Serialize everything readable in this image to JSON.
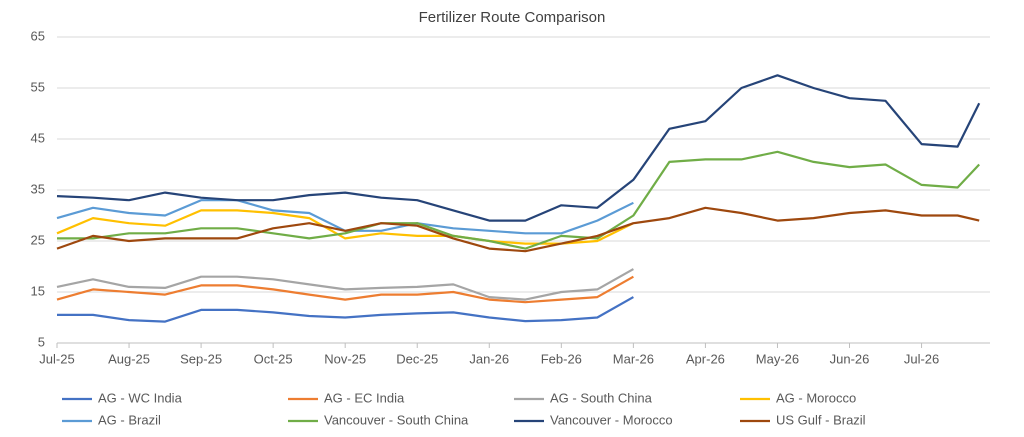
{
  "chart_data": {
    "type": "line",
    "title": "Fertilizer Route Comparison",
    "x": [
      0,
      0.5,
      1,
      1.5,
      2,
      2.5,
      3,
      3.5,
      4,
      4.5,
      5,
      5.5,
      6,
      6.5,
      7,
      7.5,
      8,
      8.5,
      9,
      9.5,
      10,
      10.5,
      11,
      11.5,
      12,
      12.5,
      12.8
    ],
    "xlim": [
      0,
      12.95
    ],
    "xticks": [
      {
        "value": 0,
        "label": "Jul-25"
      },
      {
        "value": 1,
        "label": "Aug-25"
      },
      {
        "value": 2,
        "label": "Sep-25"
      },
      {
        "value": 3,
        "label": "Oct-25"
      },
      {
        "value": 4,
        "label": "Nov-25"
      },
      {
        "value": 5,
        "label": "Dec-25"
      },
      {
        "value": 6,
        "label": "Jan-26"
      },
      {
        "value": 7,
        "label": "Feb-26"
      },
      {
        "value": 8,
        "label": "Mar-26"
      },
      {
        "value": 9,
        "label": "Apr-26"
      },
      {
        "value": 10,
        "label": "May-26"
      },
      {
        "value": 11,
        "label": "Jun-26"
      },
      {
        "value": 12,
        "label": "Jul-26"
      }
    ],
    "ylim": [
      5,
      65
    ],
    "yticks": [
      5,
      15,
      25,
      35,
      45,
      55,
      65
    ],
    "grid": true,
    "series": [
      {
        "name": "AG - WC India",
        "color": "#4472c4",
        "values": [
          10.5,
          10.5,
          9.5,
          9.2,
          11.5,
          11.5,
          11,
          10.3,
          10,
          10.5,
          10.8,
          11,
          10,
          9.3,
          9.5,
          10,
          14,
          null,
          null,
          null,
          null,
          null,
          null,
          null,
          null,
          null,
          null
        ]
      },
      {
        "name": "AG - EC India",
        "color": "#ed7d31",
        "values": [
          13.5,
          15.5,
          15,
          14.5,
          16.3,
          16.3,
          15.5,
          14.5,
          13.5,
          14.5,
          14.5,
          15,
          13.5,
          13,
          13.5,
          14,
          18,
          null,
          null,
          null,
          null,
          null,
          null,
          null,
          null,
          null,
          null
        ]
      },
      {
        "name": "AG - South China",
        "color": "#a5a5a5",
        "values": [
          16,
          17.5,
          16,
          15.8,
          18,
          18,
          17.5,
          16.5,
          15.5,
          15.8,
          16,
          16.5,
          14,
          13.5,
          15,
          15.5,
          19.5,
          null,
          null,
          null,
          null,
          null,
          null,
          null,
          null,
          null,
          null
        ]
      },
      {
        "name": "AG - Morocco",
        "color": "#ffc000",
        "values": [
          26.5,
          29.5,
          28.5,
          28,
          31,
          31,
          30.5,
          29.5,
          25.5,
          26.5,
          26,
          26,
          25,
          24.5,
          24.5,
          25,
          28.5,
          null,
          null,
          null,
          null,
          null,
          null,
          null,
          null,
          null,
          null
        ]
      },
      {
        "name": "AG - Brazil",
        "color": "#5b9bd5",
        "values": [
          29.5,
          31.5,
          30.5,
          30,
          33,
          33,
          31,
          30.5,
          27,
          27,
          28.5,
          27.5,
          27,
          26.5,
          26.5,
          29,
          32.5,
          null,
          null,
          null,
          null,
          null,
          null,
          null,
          null,
          null,
          null
        ]
      },
      {
        "name": "Vancouver - South China",
        "color": "#70ad47",
        "values": [
          25.5,
          25.5,
          26.5,
          26.5,
          27.5,
          27.5,
          26.5,
          25.5,
          26.5,
          28.5,
          28.5,
          26,
          25,
          23.5,
          26,
          25.5,
          30,
          40.5,
          41,
          41,
          42.5,
          40.5,
          39.5,
          40,
          36,
          35.5,
          40
        ]
      },
      {
        "name": "Vancouver - Morocco",
        "color": "#264478",
        "values": [
          33.8,
          33.5,
          33,
          34.5,
          33.5,
          33,
          33,
          34,
          34.5,
          33.5,
          33,
          31,
          29,
          29,
          32,
          31.5,
          37,
          47,
          48.5,
          55,
          57.5,
          55,
          53,
          52.5,
          44,
          43.5,
          52
        ]
      },
      {
        "name": "US Gulf - Brazil",
        "color": "#9e480e",
        "values": [
          23.5,
          26,
          25,
          25.5,
          25.5,
          25.5,
          27.5,
          28.5,
          27,
          28.5,
          28,
          25.5,
          23.5,
          23,
          24.5,
          26,
          28.5,
          29.5,
          31.5,
          30.5,
          29,
          29.5,
          30.5,
          31,
          30,
          30,
          29
        ]
      }
    ]
  }
}
